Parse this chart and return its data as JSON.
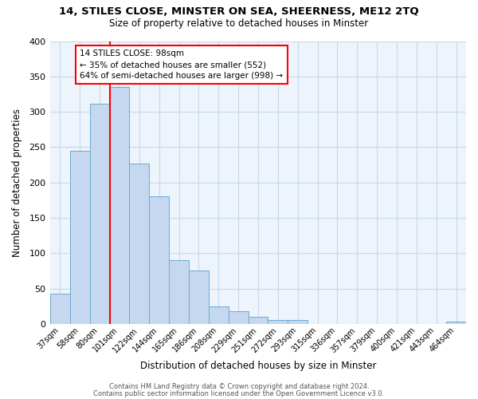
{
  "title": "14, STILES CLOSE, MINSTER ON SEA, SHEERNESS, ME12 2TQ",
  "subtitle": "Size of property relative to detached houses in Minster",
  "xlabel": "Distribution of detached houses by size in Minster",
  "ylabel": "Number of detached properties",
  "bar_labels": [
    "37sqm",
    "58sqm",
    "80sqm",
    "101sqm",
    "122sqm",
    "144sqm",
    "165sqm",
    "186sqm",
    "208sqm",
    "229sqm",
    "251sqm",
    "272sqm",
    "293sqm",
    "315sqm",
    "336sqm",
    "357sqm",
    "379sqm",
    "400sqm",
    "421sqm",
    "443sqm",
    "464sqm"
  ],
  "bar_heights": [
    43,
    245,
    311,
    335,
    227,
    181,
    90,
    75,
    25,
    18,
    10,
    5,
    5,
    0,
    0,
    0,
    0,
    0,
    0,
    0,
    3
  ],
  "bar_color": "#c5d8f0",
  "bar_edge_color": "#6aabd2",
  "vline_x": 2.5,
  "vline_color": "red",
  "ylim": [
    0,
    400
  ],
  "yticks": [
    0,
    50,
    100,
    150,
    200,
    250,
    300,
    350,
    400
  ],
  "annotation_text": "14 STILES CLOSE: 98sqm\n← 35% of detached houses are smaller (552)\n64% of semi-detached houses are larger (998) →",
  "annotation_box_color": "white",
  "annotation_box_edge_color": "red",
  "footer_line1": "Contains HM Land Registry data © Crown copyright and database right 2024.",
  "footer_line2": "Contains public sector information licensed under the Open Government Licence v3.0.",
  "background_color": "#eef4fb",
  "grid_color": "#c8d8ea"
}
